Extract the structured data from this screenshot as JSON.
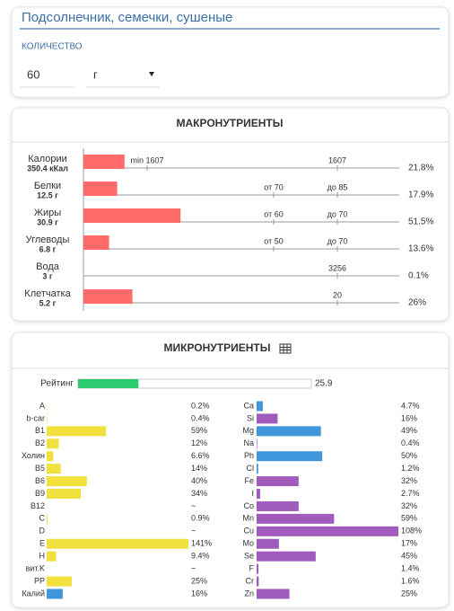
{
  "search": {
    "query": "Подсолнечник, семечки, сушеные",
    "quantity_label": "КОЛИЧЕСТВО",
    "quantity": 60,
    "unit": "г"
  },
  "macros": {
    "title": "МАКРОНУТРИЕНТЫ",
    "rows": [
      {
        "name": "Калории",
        "amount": "350.4 кКал",
        "low": "min 1607",
        "high": "1607",
        "value": 21.8,
        "label": "21.8%"
      },
      {
        "name": "Белки",
        "amount": "12.5 г",
        "low": "от 70",
        "high": "до 85",
        "value": 17.9,
        "label": "17.9%"
      },
      {
        "name": "Жиры",
        "amount": "30.9 г",
        "low": "от 60",
        "high": "до 70",
        "value": 51.5,
        "label": "51.5%"
      },
      {
        "name": "Углеводы",
        "amount": "6.8 г",
        "low": "от 50",
        "high": "до 70",
        "value": 13.6,
        "label": "13.6%"
      },
      {
        "name": "Вода",
        "amount": "3 г",
        "high": "3256",
        "value": 0.1,
        "label": "0.1%"
      },
      {
        "name": "Клетчатка",
        "amount": "5.2 г",
        "high": "20",
        "value": 26,
        "label": "26%"
      }
    ]
  },
  "micros": {
    "title": "МИКРОНУТРИЕНТЫ",
    "rating_label": "Рейтинг",
    "rating": 25.9,
    "left": [
      {
        "name": "A",
        "value": 0.2,
        "label": "0.2%",
        "color": "#f2e03c"
      },
      {
        "name": "b-car",
        "value": 0.4,
        "label": "0.4%",
        "color": "#f2e03c"
      },
      {
        "name": "B1",
        "value": 59,
        "label": "59%",
        "color": "#f2e03c"
      },
      {
        "name": "B2",
        "value": 12,
        "label": "12%",
        "color": "#f2e03c"
      },
      {
        "name": "Холин",
        "value": 6.6,
        "label": "6.6%",
        "color": "#f2e03c"
      },
      {
        "name": "B5",
        "value": 14,
        "label": "14%",
        "color": "#f2e03c"
      },
      {
        "name": "B6",
        "value": 40,
        "label": "40%",
        "color": "#f2e03c"
      },
      {
        "name": "B9",
        "value": 34,
        "label": "34%",
        "color": "#f2e03c"
      },
      {
        "name": "B12",
        "value": null,
        "label": "~",
        "color": "#f2e03c"
      },
      {
        "name": "C",
        "value": 0.9,
        "label": "0.9%",
        "color": "#f2e03c"
      },
      {
        "name": "D",
        "value": null,
        "label": "~",
        "color": "#f2e03c"
      },
      {
        "name": "E",
        "value": 141,
        "label": "141%",
        "color": "#f2e03c"
      },
      {
        "name": "H",
        "value": 9.4,
        "label": "9.4%",
        "color": "#f2e03c"
      },
      {
        "name": "вит.K",
        "value": null,
        "label": "~",
        "color": "#f2e03c"
      },
      {
        "name": "PP",
        "value": 25,
        "label": "25%",
        "color": "#f2e03c"
      },
      {
        "name": "Калий",
        "value": 16,
        "label": "16%",
        "color": "#3f96db"
      }
    ],
    "right": [
      {
        "name": "Ca",
        "value": 4.7,
        "label": "4.7%",
        "color": "#3f96db"
      },
      {
        "name": "Si",
        "value": 16,
        "label": "16%",
        "color": "#a05bbd"
      },
      {
        "name": "Mg",
        "value": 49,
        "label": "49%",
        "color": "#3f96db"
      },
      {
        "name": "Na",
        "value": 0.4,
        "label": "0.4%",
        "color": "#a05bbd"
      },
      {
        "name": "Ph",
        "value": 50,
        "label": "50%",
        "color": "#3f96db"
      },
      {
        "name": "Cl",
        "value": 1.2,
        "label": "1.2%",
        "color": "#3f96db"
      },
      {
        "name": "Fe",
        "value": 32,
        "label": "32%",
        "color": "#a05bbd"
      },
      {
        "name": "I",
        "value": 2.7,
        "label": "2.7%",
        "color": "#a05bbd"
      },
      {
        "name": "Co",
        "value": 32,
        "label": "32%",
        "color": "#a05bbd"
      },
      {
        "name": "Mn",
        "value": 59,
        "label": "59%",
        "color": "#a05bbd"
      },
      {
        "name": "Cu",
        "value": 108,
        "label": "108%",
        "color": "#a05bbd"
      },
      {
        "name": "Mo",
        "value": 17,
        "label": "17%",
        "color": "#a05bbd"
      },
      {
        "name": "Se",
        "value": 45,
        "label": "45%",
        "color": "#a05bbd"
      },
      {
        "name": "F",
        "value": 1.4,
        "label": "1.4%",
        "color": "#a05bbd"
      },
      {
        "name": "Cr",
        "value": 1.6,
        "label": "1.6%",
        "color": "#a05bbd"
      },
      {
        "name": "Zn",
        "value": 25,
        "label": "25%",
        "color": "#a05bbd"
      }
    ]
  }
}
